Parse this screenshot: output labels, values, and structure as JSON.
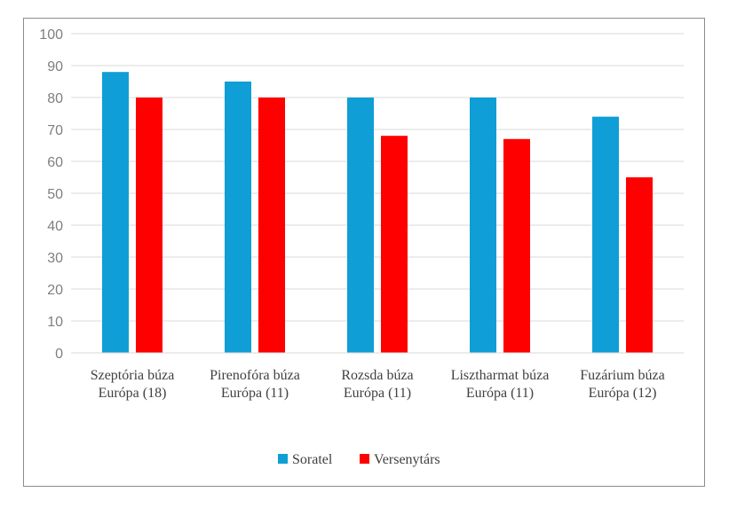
{
  "chart_data": {
    "type": "bar",
    "categories": [
      [
        "Szeptória búza",
        "Európa (18)"
      ],
      [
        "Pirenofóra búza",
        "Európa (11)"
      ],
      [
        "Rozsda búza",
        "Európa (11)"
      ],
      [
        "Lisztharmat búza",
        "Európa (11)"
      ],
      [
        "Fuzárium búza",
        "Európa (12)"
      ]
    ],
    "series": [
      {
        "name": "Soratel",
        "color": "#0f9ed5",
        "values": [
          88,
          85,
          80,
          80,
          74
        ]
      },
      {
        "name": "Versenytárs",
        "color": "#ff0000",
        "values": [
          80,
          80,
          68,
          67,
          55
        ]
      }
    ],
    "ylim": [
      0,
      100
    ],
    "yticks": [
      0,
      10,
      20,
      30,
      40,
      50,
      60,
      70,
      80,
      90,
      100
    ],
    "grid": true,
    "legend_position": "bottom"
  }
}
